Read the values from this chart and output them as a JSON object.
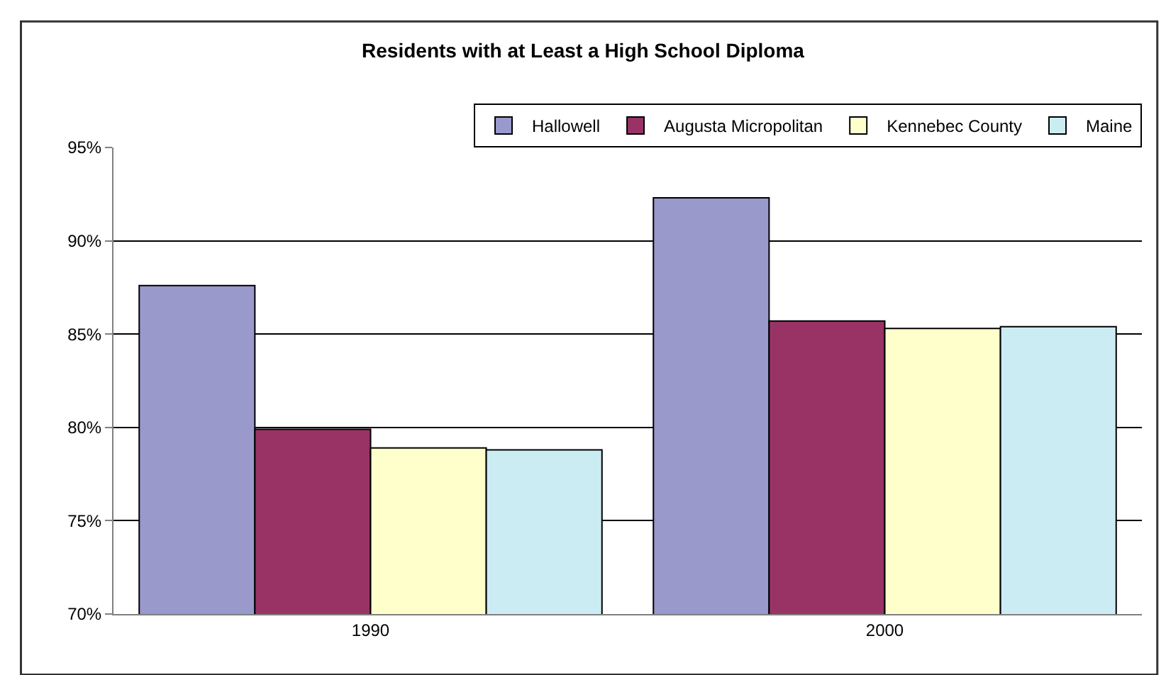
{
  "chart_data": {
    "type": "bar",
    "title": "Residents with at Least a High School Diploma",
    "categories": [
      "1990",
      "2000"
    ],
    "series": [
      {
        "name": "Hallowell",
        "color": "#9999cc",
        "values": [
          87.6,
          92.3
        ]
      },
      {
        "name": "Augusta Micropolitan",
        "color": "#993366",
        "values": [
          79.9,
          85.7
        ]
      },
      {
        "name": "Kennebec County",
        "color": "#ffffcc",
        "values": [
          78.9,
          85.3
        ]
      },
      {
        "name": "Maine",
        "color": "#ccecf4",
        "values": [
          78.8,
          85.4
        ]
      }
    ],
    "ylim": [
      70,
      95
    ],
    "yticks": [
      {
        "value": 70,
        "label": "70%"
      },
      {
        "value": 75,
        "label": "75%"
      },
      {
        "value": 80,
        "label": "80%"
      },
      {
        "value": 85,
        "label": "85%"
      },
      {
        "value": 90,
        "label": "90%"
      },
      {
        "value": 95,
        "label": "95%"
      }
    ],
    "grid": "y",
    "legend": "top right"
  }
}
